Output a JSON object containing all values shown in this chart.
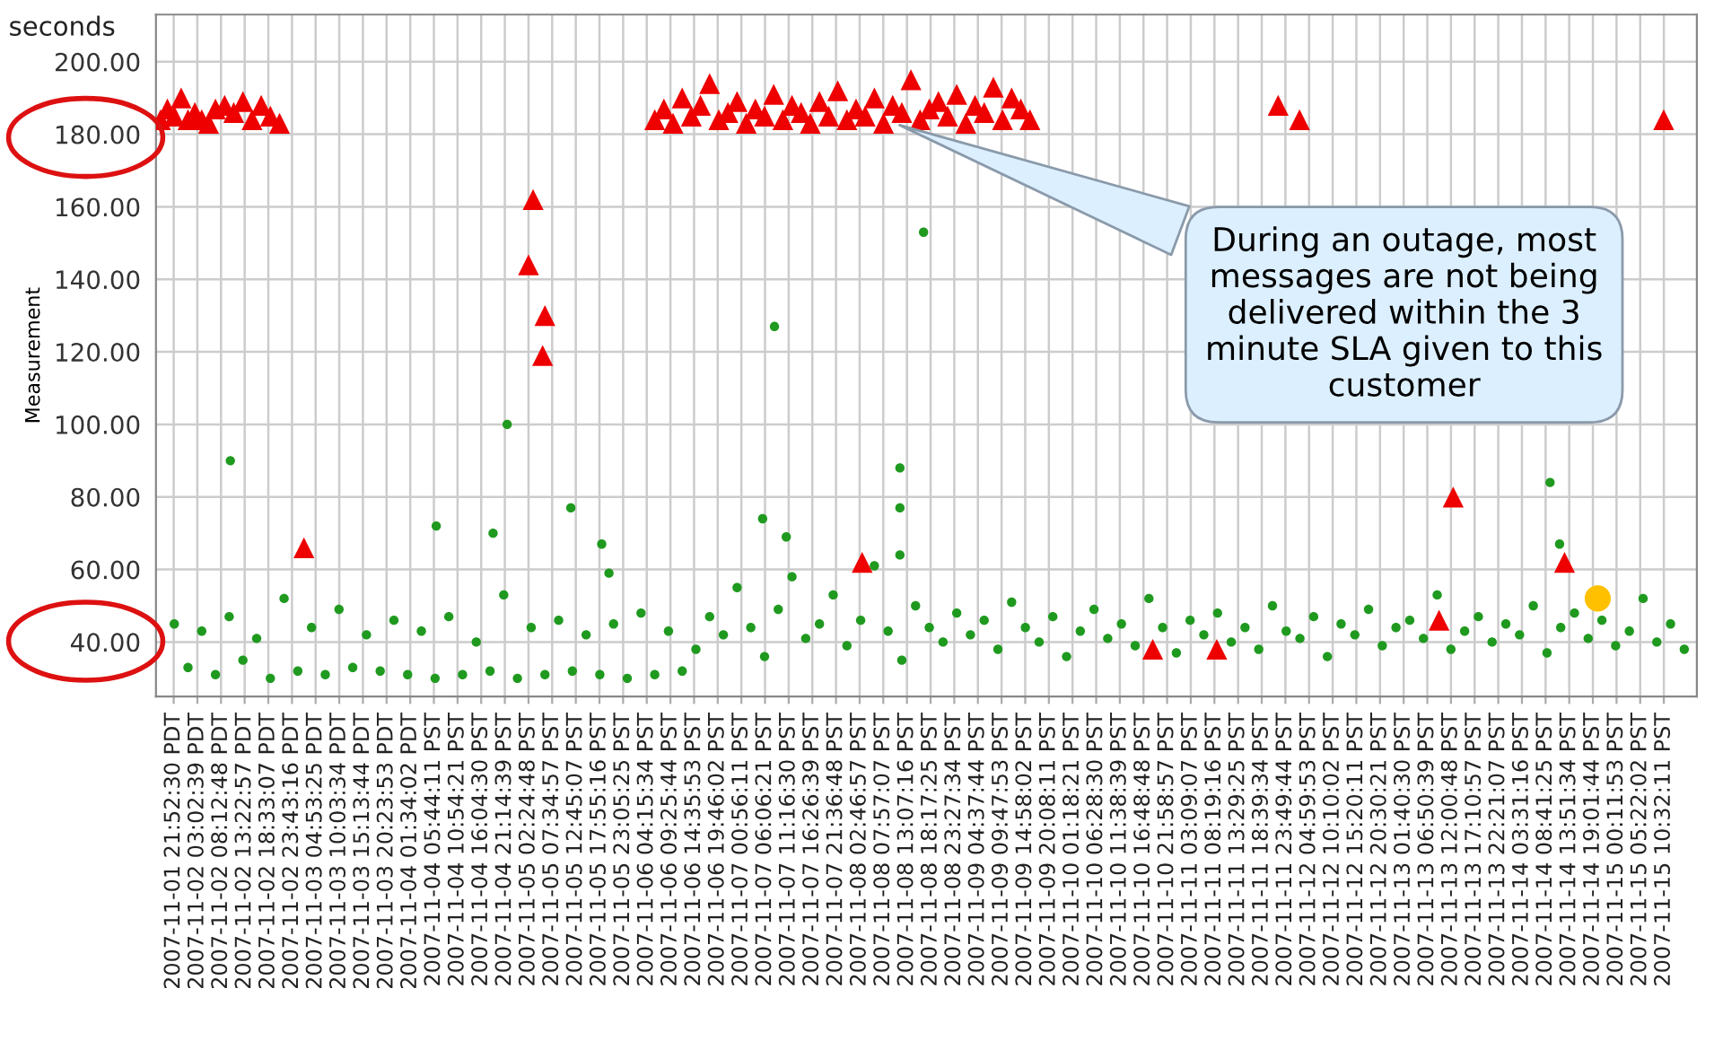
{
  "chart_data": {
    "type": "scatter",
    "ylabel": "Measurement",
    "annotations": [
      "seconds",
      {
        "text": "During an outage, most messages are not being delivered within the 3 minute SLA given to this customer",
        "x": "2007-11-08T10:30",
        "y": 183
      }
    ],
    "xlim": [
      "2007-11-01T17:00",
      "2007-11-15T17:45"
    ],
    "xticks": [
      {
        "value": "2007-11-01T20:52:30",
        "label": "2007-11-01 21:52:30 PDT"
      },
      {
        "value": "2007-11-02T02:02:39",
        "label": "2007-11-02 03:02:39 PDT"
      },
      {
        "value": "2007-11-02T07:12:48",
        "label": "2007-11-02 08:12:48 PDT"
      },
      {
        "value": "2007-11-02T12:22:57",
        "label": "2007-11-02 13:22:57 PDT"
      },
      {
        "value": "2007-11-02T17:33:07",
        "label": "2007-11-02 18:33:07 PDT"
      },
      {
        "value": "2007-11-02T22:43:16",
        "label": "2007-11-02 23:43:16 PDT"
      },
      {
        "value": "2007-11-03T03:53:25",
        "label": "2007-11-03 04:53:25 PDT"
      },
      {
        "value": "2007-11-03T09:03:34",
        "label": "2007-11-03 10:03:34 PDT"
      },
      {
        "value": "2007-11-03T14:13:44",
        "label": "2007-11-03 15:13:44 PDT"
      },
      {
        "value": "2007-11-03T19:23:53",
        "label": "2007-11-03 20:23:53 PDT"
      },
      {
        "value": "2007-11-04T00:34:02",
        "label": "2007-11-04 01:34:02 PDT"
      },
      {
        "value": "2007-11-04T05:44:11",
        "label": "2007-11-04 05:44:11 PST"
      },
      {
        "value": "2007-11-04T10:54:21",
        "label": "2007-11-04 10:54:21 PST"
      },
      {
        "value": "2007-11-04T16:04:30",
        "label": "2007-11-04 16:04:30 PST"
      },
      {
        "value": "2007-11-04T21:14:39",
        "label": "2007-11-04 21:14:39 PST"
      },
      {
        "value": "2007-11-05T02:24:48",
        "label": "2007-11-05 02:24:48 PST"
      },
      {
        "value": "2007-11-05T07:34:57",
        "label": "2007-11-05 07:34:57 PST"
      },
      {
        "value": "2007-11-05T12:45:07",
        "label": "2007-11-05 12:45:07 PST"
      },
      {
        "value": "2007-11-05T17:55:16",
        "label": "2007-11-05 17:55:16 PST"
      },
      {
        "value": "2007-11-05T23:05:25",
        "label": "2007-11-05 23:05:25 PST"
      },
      {
        "value": "2007-11-06T04:15:34",
        "label": "2007-11-06 04:15:34 PST"
      },
      {
        "value": "2007-11-06T09:25:44",
        "label": "2007-11-06 09:25:44 PST"
      },
      {
        "value": "2007-11-06T14:35:53",
        "label": "2007-11-06 14:35:53 PST"
      },
      {
        "value": "2007-11-06T19:46:02",
        "label": "2007-11-06 19:46:02 PST"
      },
      {
        "value": "2007-11-07T00:56:11",
        "label": "2007-11-07 00:56:11 PST"
      },
      {
        "value": "2007-11-07T06:06:21",
        "label": "2007-11-07 06:06:21 PST"
      },
      {
        "value": "2007-11-07T11:16:30",
        "label": "2007-11-07 11:16:30 PST"
      },
      {
        "value": "2007-11-07T16:26:39",
        "label": "2007-11-07 16:26:39 PST"
      },
      {
        "value": "2007-11-07T21:36:48",
        "label": "2007-11-07 21:36:48 PST"
      },
      {
        "value": "2007-11-08T02:46:57",
        "label": "2007-11-08 02:46:57 PST"
      },
      {
        "value": "2007-11-08T07:57:07",
        "label": "2007-11-08 07:57:07 PST"
      },
      {
        "value": "2007-11-08T13:07:16",
        "label": "2007-11-08 13:07:16 PST"
      },
      {
        "value": "2007-11-08T18:17:25",
        "label": "2007-11-08 18:17:25 PST"
      },
      {
        "value": "2007-11-08T23:27:34",
        "label": "2007-11-08 23:27:34 PST"
      },
      {
        "value": "2007-11-09T04:37:44",
        "label": "2007-11-09 04:37:44 PST"
      },
      {
        "value": "2007-11-09T09:47:53",
        "label": "2007-11-09 09:47:53 PST"
      },
      {
        "value": "2007-11-09T14:58:02",
        "label": "2007-11-09 14:58:02 PST"
      },
      {
        "value": "2007-11-09T20:08:11",
        "label": "2007-11-09 20:08:11 PST"
      },
      {
        "value": "2007-11-10T01:18:21",
        "label": "2007-11-10 01:18:21 PST"
      },
      {
        "value": "2007-11-10T06:28:30",
        "label": "2007-11-10 06:28:30 PST"
      },
      {
        "value": "2007-11-10T11:38:39",
        "label": "2007-11-10 11:38:39 PST"
      },
      {
        "value": "2007-11-10T16:48:48",
        "label": "2007-11-10 16:48:48 PST"
      },
      {
        "value": "2007-11-10T21:58:57",
        "label": "2007-11-10 21:58:57 PST"
      },
      {
        "value": "2007-11-11T03:09:07",
        "label": "2007-11-11 03:09:07 PST"
      },
      {
        "value": "2007-11-11T08:19:16",
        "label": "2007-11-11 08:19:16 PST"
      },
      {
        "value": "2007-11-11T13:29:25",
        "label": "2007-11-11 13:29:25 PST"
      },
      {
        "value": "2007-11-11T18:39:34",
        "label": "2007-11-11 18:39:34 PST"
      },
      {
        "value": "2007-11-11T23:49:44",
        "label": "2007-11-11 23:49:44 PST"
      },
      {
        "value": "2007-11-12T04:59:53",
        "label": "2007-11-12 04:59:53 PST"
      },
      {
        "value": "2007-11-12T10:10:02",
        "label": "2007-11-12 10:10:02 PST"
      },
      {
        "value": "2007-11-12T15:20:11",
        "label": "2007-11-12 15:20:11 PST"
      },
      {
        "value": "2007-11-12T20:30:21",
        "label": "2007-11-12 20:30:21 PST"
      },
      {
        "value": "2007-11-13T01:40:30",
        "label": "2007-11-13 01:40:30 PST"
      },
      {
        "value": "2007-11-13T06:50:39",
        "label": "2007-11-13 06:50:39 PST"
      },
      {
        "value": "2007-11-13T12:00:48",
        "label": "2007-11-13 12:00:48 PST"
      },
      {
        "value": "2007-11-13T17:10:57",
        "label": "2007-11-13 17:10:57 PST"
      },
      {
        "value": "2007-11-13T22:21:07",
        "label": "2007-11-13 22:21:07 PST"
      },
      {
        "value": "2007-11-14T03:31:16",
        "label": "2007-11-14 03:31:16 PST"
      },
      {
        "value": "2007-11-14T08:41:25",
        "label": "2007-11-14 08:41:25 PST"
      },
      {
        "value": "2007-11-14T13:51:34",
        "label": "2007-11-14 13:51:34 PST"
      },
      {
        "value": "2007-11-14T19:01:44",
        "label": "2007-11-14 19:01:44 PST"
      },
      {
        "value": "2007-11-15T00:11:53",
        "label": "2007-11-15 00:11:53 PST"
      },
      {
        "value": "2007-11-15T05:22:02",
        "label": "2007-11-15 05:22:02 PST"
      },
      {
        "value": "2007-11-15T10:32:11",
        "label": "2007-11-15 10:32:11 PST"
      }
    ],
    "ylim": [
      25,
      213
    ],
    "yticks": [
      {
        "value": 40,
        "label": "40.00"
      },
      {
        "value": 60,
        "label": "60.00"
      },
      {
        "value": 80,
        "label": "80.00"
      },
      {
        "value": 100,
        "label": "100.00"
      },
      {
        "value": 120,
        "label": "120.00"
      },
      {
        "value": 140,
        "label": "140.00"
      },
      {
        "value": 160,
        "label": "160.00"
      },
      {
        "value": 180,
        "label": "180.00"
      },
      {
        "value": 200,
        "label": "200.00"
      }
    ],
    "grid": true,
    "series": [
      {
        "color": "#1f9a1f",
        "marker": "circle",
        "x": [
          "2007-11-01T21:00",
          "2007-11-02T00:00",
          "2007-11-02T03:00",
          "2007-11-02T06:00",
          "2007-11-02T09:00",
          "2007-11-02T12:00",
          "2007-11-02T15:00",
          "2007-11-02T18:00",
          "2007-11-02T21:00",
          "2007-11-03T00:00",
          "2007-11-03T03:00",
          "2007-11-03T06:00",
          "2007-11-03T09:00",
          "2007-11-03T12:00",
          "2007-11-03T15:00",
          "2007-11-03T18:00",
          "2007-11-03T21:00",
          "2007-11-04T00:00",
          "2007-11-04T03:00",
          "2007-11-04T06:00",
          "2007-11-04T09:00",
          "2007-11-04T12:00",
          "2007-11-04T15:00",
          "2007-11-04T18:00",
          "2007-11-04T21:00",
          "2007-11-05T00:00",
          "2007-11-05T03:00",
          "2007-11-05T06:00",
          "2007-11-05T09:00",
          "2007-11-05T12:00",
          "2007-11-05T15:00",
          "2007-11-05T18:00",
          "2007-11-05T21:00",
          "2007-11-06T00:00",
          "2007-11-06T03:00",
          "2007-11-06T06:00",
          "2007-11-06T09:00",
          "2007-11-06T12:00",
          "2007-11-06T15:00",
          "2007-11-06T18:00",
          "2007-11-06T21:00",
          "2007-11-07T00:00",
          "2007-11-07T03:00",
          "2007-11-07T06:00",
          "2007-11-07T09:00",
          "2007-11-07T12:00",
          "2007-11-07T15:00",
          "2007-11-07T18:00",
          "2007-11-07T21:00",
          "2007-11-08T00:00",
          "2007-11-08T03:00",
          "2007-11-08T06:00",
          "2007-11-08T09:00",
          "2007-11-08T12:00",
          "2007-11-08T15:00",
          "2007-11-08T18:00",
          "2007-11-08T21:00",
          "2007-11-09T00:00",
          "2007-11-09T03:00",
          "2007-11-09T06:00",
          "2007-11-09T09:00",
          "2007-11-09T12:00",
          "2007-11-09T15:00",
          "2007-11-09T18:00",
          "2007-11-09T21:00",
          "2007-11-10T00:00",
          "2007-11-10T03:00",
          "2007-11-10T06:00",
          "2007-11-10T09:00",
          "2007-11-10T12:00",
          "2007-11-10T15:00",
          "2007-11-10T18:00",
          "2007-11-10T21:00",
          "2007-11-11T00:00",
          "2007-11-11T03:00",
          "2007-11-11T06:00",
          "2007-11-11T09:00",
          "2007-11-11T12:00",
          "2007-11-11T15:00",
          "2007-11-11T18:00",
          "2007-11-11T21:00",
          "2007-11-12T00:00",
          "2007-11-12T03:00",
          "2007-11-12T06:00",
          "2007-11-12T09:00",
          "2007-11-12T12:00",
          "2007-11-12T15:00",
          "2007-11-12T18:00",
          "2007-11-12T21:00",
          "2007-11-13T00:00",
          "2007-11-13T03:00",
          "2007-11-13T06:00",
          "2007-11-13T09:00",
          "2007-11-13T12:00",
          "2007-11-13T15:00",
          "2007-11-13T18:00",
          "2007-11-13T21:00",
          "2007-11-14T00:00",
          "2007-11-14T03:00",
          "2007-11-14T06:00",
          "2007-11-14T09:00",
          "2007-11-14T12:00",
          "2007-11-14T15:00",
          "2007-11-14T18:00",
          "2007-11-14T21:00",
          "2007-11-15T00:00",
          "2007-11-15T03:00",
          "2007-11-15T06:00",
          "2007-11-15T09:00",
          "2007-11-15T12:00",
          "2007-11-15T15:00",
          "2007-11-02T09:15",
          "2007-11-04T21:45",
          "2007-11-04T06:15",
          "2007-11-04T18:40",
          "2007-11-05T11:40",
          "2007-11-05T18:25",
          "2007-11-05T20:00",
          "2007-11-07T08:10",
          "2007-11-07T05:35",
          "2007-11-08T16:45",
          "2007-11-08T11:35",
          "2007-11-08T11:35",
          "2007-11-08T11:35",
          "2007-11-07T10:45",
          "2007-11-14T09:40",
          "2007-11-14T11:45"
        ],
        "values": [
          45,
          33,
          43,
          31,
          47,
          35,
          41,
          30,
          52,
          32,
          44,
          31,
          49,
          33,
          42,
          32,
          46,
          31,
          43,
          30,
          47,
          31,
          40,
          32,
          53,
          30,
          44,
          31,
          46,
          32,
          42,
          31,
          45,
          30,
          48,
          31,
          43,
          32,
          38,
          47,
          42,
          55,
          44,
          36,
          49,
          58,
          41,
          45,
          53,
          39,
          46,
          61,
          43,
          35,
          50,
          44,
          40,
          48,
          42,
          46,
          38,
          51,
          44,
          40,
          47,
          36,
          43,
          49,
          41,
          45,
          39,
          52,
          44,
          37,
          46,
          42,
          48,
          40,
          44,
          38,
          50,
          43,
          41,
          47,
          36,
          45,
          42,
          49,
          39,
          44,
          46,
          41,
          53,
          38,
          43,
          47,
          40,
          45,
          42,
          50,
          37,
          44,
          48,
          41,
          46,
          39,
          43,
          52,
          40,
          45,
          38,
          90,
          100,
          72,
          70,
          77,
          67,
          59,
          127,
          74,
          153,
          88,
          77,
          64,
          69,
          84,
          67
        ]
      },
      {
        "color": "#ee0000",
        "marker": "triangle",
        "x": [
          "2007-11-01T18:00",
          "2007-11-01T19:30",
          "2007-11-01T21:00",
          "2007-11-01T22:30",
          "2007-11-02T00:00",
          "2007-11-02T01:30",
          "2007-11-02T03:00",
          "2007-11-02T04:30",
          "2007-11-02T06:00",
          "2007-11-02T08:00",
          "2007-11-02T10:00",
          "2007-11-02T12:00",
          "2007-11-02T14:00",
          "2007-11-02T16:00",
          "2007-11-02T18:00",
          "2007-11-02T20:00",
          "2007-11-06T06:00",
          "2007-11-06T08:00",
          "2007-11-06T10:00",
          "2007-11-06T12:00",
          "2007-11-06T14:00",
          "2007-11-06T16:00",
          "2007-11-06T18:00",
          "2007-11-06T20:00",
          "2007-11-06T22:00",
          "2007-11-07T00:00",
          "2007-11-07T02:00",
          "2007-11-07T04:00",
          "2007-11-07T06:00",
          "2007-11-07T08:00",
          "2007-11-07T10:00",
          "2007-11-07T12:00",
          "2007-11-07T14:00",
          "2007-11-07T16:00",
          "2007-11-07T18:00",
          "2007-11-07T20:00",
          "2007-11-07T22:00",
          "2007-11-08T00:00",
          "2007-11-08T02:00",
          "2007-11-08T04:00",
          "2007-11-08T06:00",
          "2007-11-08T08:00",
          "2007-11-08T10:00",
          "2007-11-08T12:00",
          "2007-11-08T14:00",
          "2007-11-08T16:00",
          "2007-11-08T18:00",
          "2007-11-08T20:00",
          "2007-11-08T22:00",
          "2007-11-09T00:00",
          "2007-11-09T02:00",
          "2007-11-09T04:00",
          "2007-11-09T06:00",
          "2007-11-09T08:00",
          "2007-11-09T10:00",
          "2007-11-09T12:00",
          "2007-11-09T14:00",
          "2007-11-09T16:00",
          "2007-11-03T01:20",
          "2007-11-05T03:25",
          "2007-11-05T02:25",
          "2007-11-05T06:00",
          "2007-11-05T05:30",
          "2007-11-08T03:20",
          "2007-11-11T22:15",
          "2007-11-12T02:55",
          "2007-11-15T10:30",
          "2007-11-10T18:50",
          "2007-11-11T08:50",
          "2007-11-13T09:25",
          "2007-11-13T12:30",
          "2007-11-14T12:50"
        ],
        "values": [
          184,
          187,
          185,
          190,
          184,
          186,
          184,
          183,
          187,
          188,
          186,
          189,
          184,
          188,
          185,
          183,
          184,
          187,
          183,
          190,
          185,
          188,
          194,
          184,
          186,
          189,
          183,
          187,
          185,
          191,
          184,
          188,
          186,
          183,
          189,
          185,
          192,
          184,
          187,
          185,
          190,
          183,
          188,
          186,
          195,
          184,
          187,
          189,
          185,
          191,
          183,
          188,
          186,
          193,
          184,
          190,
          187,
          184,
          66,
          162,
          144,
          130,
          119,
          62,
          188,
          184,
          184,
          38,
          38,
          46,
          80,
          62
        ]
      },
      {
        "color": "#ffc000",
        "marker": "circle",
        "x": [
          "2007-11-14T20:05"
        ],
        "values": [
          52
        ]
      }
    ]
  }
}
